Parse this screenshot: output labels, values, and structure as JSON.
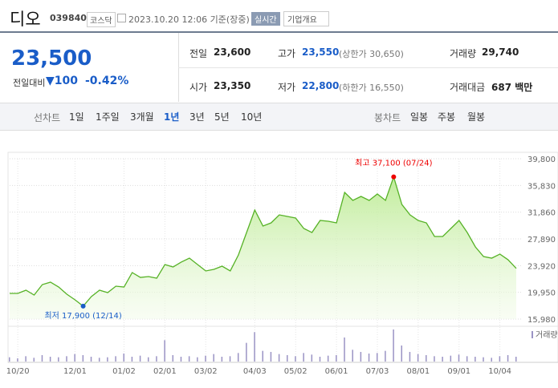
{
  "header": {
    "name": "디오",
    "code": "039840",
    "market": "코스닥",
    "datetime": "2023.10.20 12:06 기준(장중)",
    "realtime": "실시간",
    "company_info": "기업개요"
  },
  "price": {
    "current": "23,500",
    "change_label": "전일대비",
    "change": "100",
    "rate": "-0.42%"
  },
  "stats": [
    [
      {
        "label": "전일",
        "value": "23,600"
      },
      {
        "label": "고가",
        "value": "23,550",
        "note": "(상한가 30,650)"
      },
      {
        "label": "거래량",
        "value": "29,740"
      }
    ],
    [
      {
        "label": "시가",
        "value": "23,350"
      },
      {
        "label": "저가",
        "value": "22,800",
        "note": "(하한가 16,550)"
      },
      {
        "label": "거래대금",
        "value": "687 백만"
      }
    ]
  ],
  "tabs": {
    "line_label": "선차트",
    "line": [
      "1일",
      "1주일",
      "3개월",
      "1년",
      "3년",
      "5년",
      "10년"
    ],
    "selected": 3,
    "candle_label": "봉차트",
    "candle": [
      "일봉",
      "주봉",
      "월봉"
    ]
  },
  "chart_data": {
    "type": "line",
    "x": [
      null,
      "10/20",
      null,
      null,
      null,
      null,
      null,
      null,
      "12/01",
      null,
      null,
      null,
      null,
      null,
      "01/02",
      null,
      null,
      null,
      null,
      "02/01",
      null,
      null,
      null,
      null,
      "03/02",
      null,
      null,
      null,
      null,
      null,
      "04/03",
      null,
      null,
      null,
      null,
      "05/02",
      null,
      null,
      null,
      null,
      "06/01",
      null,
      null,
      null,
      null,
      "07/03",
      null,
      null,
      null,
      null,
      "08/01",
      null,
      null,
      null,
      null,
      "09/01",
      null,
      null,
      null,
      null,
      "10/04",
      null,
      null
    ],
    "values": [
      19790,
      19790,
      20270,
      19550,
      21100,
      21460,
      20740,
      19670,
      18840,
      17900,
      19320,
      20270,
      19910,
      20860,
      20740,
      22890,
      22170,
      22290,
      22050,
      24080,
      23720,
      24440,
      25030,
      24080,
      23130,
      23360,
      23840,
      23130,
      25510,
      28840,
      32180,
      29800,
      30270,
      31460,
      31230,
      30990,
      29440,
      28840,
      30630,
      30510,
      30270,
      34800,
      33610,
      34200,
      33610,
      34560,
      33610,
      37100,
      33010,
      31460,
      30630,
      30270,
      28250,
      28250,
      29440,
      30630,
      28840,
      26700,
      25270,
      25030,
      25630,
      24790,
      23500
    ],
    "color": "#56b226",
    "ylim": [
      15980,
      39800
    ],
    "yticks": [
      {
        "value": 15980,
        "label": "15,980"
      },
      {
        "value": 19950,
        "label": "19,950"
      },
      {
        "value": 23920,
        "label": "23,920"
      },
      {
        "value": 27890,
        "label": "27,890"
      },
      {
        "value": 31860,
        "label": "31,860"
      },
      {
        "value": 35830,
        "label": "35,830"
      },
      {
        "value": 39800,
        "label": "39,800"
      }
    ],
    "grid": true,
    "high_label": "최고 37,100 (07/24)",
    "low_label": "최저 17,900 (12/14)",
    "volume_label": "거래량",
    "volume": [
      8,
      6,
      10,
      7,
      12,
      9,
      8,
      10,
      14,
      12,
      9,
      7,
      8,
      10,
      15,
      9,
      11,
      8,
      10,
      40,
      12,
      9,
      10,
      8,
      11,
      14,
      9,
      10,
      16,
      35,
      55,
      20,
      18,
      14,
      12,
      10,
      16,
      13,
      9,
      11,
      12,
      45,
      22,
      18,
      15,
      16,
      20,
      60,
      30,
      18,
      14,
      12,
      10,
      9,
      11,
      13,
      10,
      9,
      8,
      7,
      10,
      12,
      9
    ],
    "volume_color": "#9a93c4"
  }
}
